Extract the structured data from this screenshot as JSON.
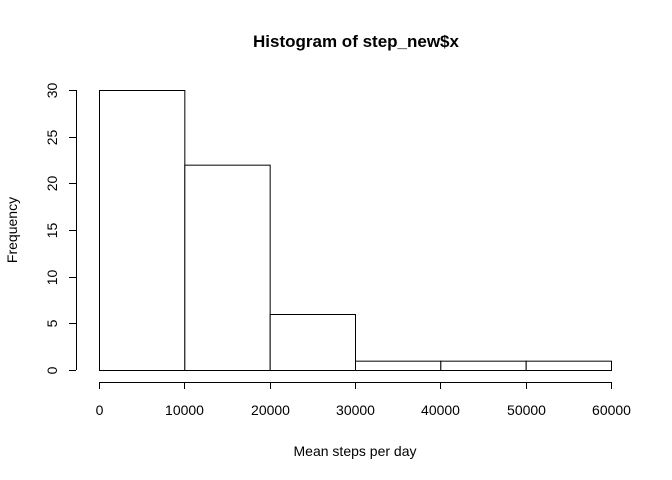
{
  "chart_data": {
    "type": "bar",
    "title": "Histogram of step_new$x",
    "xlabel": "Mean steps per day",
    "ylabel": "Frequency",
    "bins": [
      {
        "from": 0,
        "to": 10000,
        "count": 30
      },
      {
        "from": 10000,
        "to": 20000,
        "count": 22
      },
      {
        "from": 20000,
        "to": 30000,
        "count": 6
      },
      {
        "from": 30000,
        "to": 40000,
        "count": 1
      },
      {
        "from": 40000,
        "to": 50000,
        "count": 1
      },
      {
        "from": 50000,
        "to": 60000,
        "count": 1
      }
    ],
    "xticks": [
      0,
      10000,
      20000,
      30000,
      40000,
      50000,
      60000
    ],
    "yticks": [
      0,
      5,
      10,
      15,
      20,
      25,
      30
    ],
    "xlim": [
      0,
      60000
    ],
    "ylim": [
      0,
      30
    ],
    "grid": false,
    "colors": {
      "bar_fill": "#ffffff",
      "bar_stroke": "#000000"
    }
  }
}
